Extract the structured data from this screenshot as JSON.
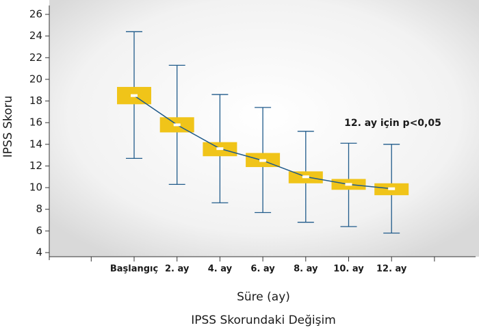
{
  "chart_data": {
    "type": "boxplot",
    "title": "IPSS Skorundaki Değişim",
    "xlabel": "Süre (ay)",
    "ylabel": "IPSS Skoru",
    "annotation": "12. ay için p<0,05",
    "categories": [
      "Başlangıç",
      "2. ay",
      "4. ay",
      "6. ay",
      "8. ay",
      "10. ay",
      "12. ay"
    ],
    "values": [
      18.5,
      15.8,
      13.6,
      12.5,
      11.0,
      10.3,
      9.9
    ],
    "upper": [
      24.4,
      21.3,
      18.6,
      17.4,
      15.2,
      14.1,
      14.0
    ],
    "lower": [
      12.7,
      10.3,
      8.6,
      7.7,
      6.8,
      6.4,
      5.8
    ],
    "box_high": [
      19.3,
      16.5,
      14.2,
      13.2,
      11.5,
      10.8,
      10.4
    ],
    "box_low": [
      17.7,
      15.1,
      12.9,
      11.9,
      10.4,
      9.8,
      9.3
    ],
    "line_color": "#1f5a8a",
    "box_color": "#f0c419",
    "ylim": [
      4,
      26
    ],
    "yticks": [
      4,
      6,
      8,
      10,
      12,
      14,
      16,
      18,
      20,
      22,
      24,
      26
    ]
  }
}
